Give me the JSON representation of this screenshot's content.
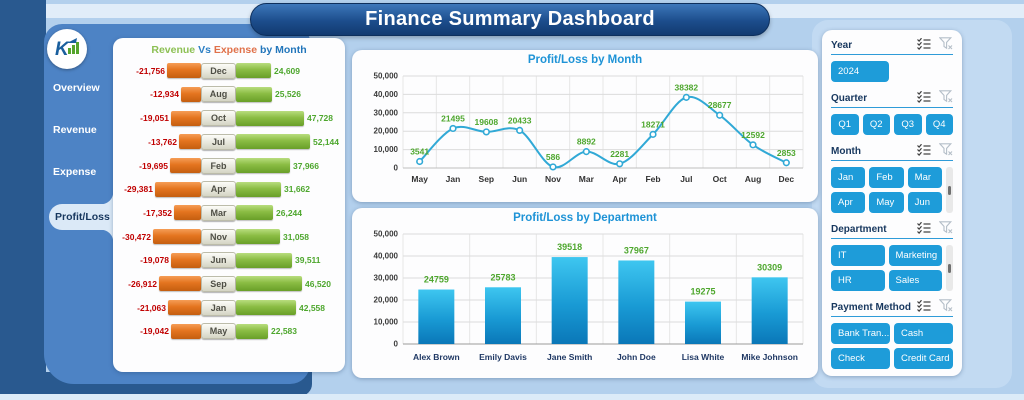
{
  "title": "Finance Summary Dashboard",
  "sidebar": {
    "items": [
      {
        "label": "Overview",
        "active": false
      },
      {
        "label": "Revenue",
        "active": false
      },
      {
        "label": "Expense",
        "active": false
      },
      {
        "label": "Profit/Loss",
        "active": true
      }
    ]
  },
  "colors": {
    "accent_button_blue": "#1e9cd9",
    "chart_title_blue": "#1e93d6",
    "line_cyan": "#31a9d6",
    "data_label_green": "#4ea72e",
    "negative_red": "#c00000",
    "expense_orange": "#e4741f",
    "revenue_green": "#8abc43",
    "navy": "#29598f",
    "sidebar_blue": "#4d83c5"
  },
  "chart_data": [
    {
      "id": "revenue_vs_expense_by_month",
      "type": "bar",
      "orientation": "horizontal-butterfly",
      "title_parts": [
        "Revenue",
        "Vs",
        "Expense",
        "by Month"
      ],
      "categories": [
        "Dec",
        "Aug",
        "Oct",
        "Jul",
        "Feb",
        "Apr",
        "Mar",
        "Nov",
        "Jun",
        "Sep",
        "Jan",
        "May"
      ],
      "series": [
        {
          "name": "Expense",
          "values": [
            -21756,
            -12934,
            -19051,
            -13762,
            -19695,
            -29381,
            -17352,
            -30472,
            -19078,
            -26912,
            -21063,
            -19042
          ]
        },
        {
          "name": "Revenue",
          "values": [
            24609,
            25526,
            47728,
            52144,
            37966,
            31662,
            26244,
            31058,
            39511,
            46520,
            42558,
            22583
          ]
        }
      ]
    },
    {
      "id": "profit_loss_by_month",
      "type": "line",
      "title": "Profit/Loss by Month",
      "categories": [
        "May",
        "Jan",
        "Sep",
        "Jun",
        "Nov",
        "Mar",
        "Apr",
        "Feb",
        "Jul",
        "Oct",
        "Aug",
        "Dec"
      ],
      "values": [
        3541,
        21495,
        19608,
        20433,
        586,
        8892,
        2281,
        18271,
        38382,
        28677,
        12592,
        2853
      ],
      "ylim": [
        0,
        50000
      ],
      "yticks": [
        0,
        10000,
        20000,
        30000,
        40000,
        50000
      ],
      "grid": true,
      "legend": "none"
    },
    {
      "id": "profit_loss_by_department",
      "type": "bar",
      "title": "Profit/Loss by Department",
      "categories": [
        "Alex Brown",
        "Emily Davis",
        "Jane Smith",
        "John Doe",
        "Lisa White",
        "Mike Johnson"
      ],
      "values": [
        24759,
        25783,
        39518,
        37967,
        19275,
        30309
      ],
      "ylim": [
        0,
        50000
      ],
      "yticks": [
        0,
        10000,
        20000,
        30000,
        40000,
        50000
      ],
      "grid": true,
      "legend": "none"
    }
  ],
  "filters": {
    "sections": [
      {
        "label": "Year",
        "layout": "single",
        "scrollbar": false,
        "options": [
          "2024"
        ]
      },
      {
        "label": "Quarter",
        "layout": "row4",
        "scrollbar": false,
        "options": [
          "Q1",
          "Q2",
          "Q3",
          "Q4"
        ]
      },
      {
        "label": "Month",
        "layout": "grid3",
        "scrollbar": true,
        "options": [
          "Jan",
          "Feb",
          "Mar",
          "Apr",
          "May",
          "Jun"
        ]
      },
      {
        "label": "Department",
        "layout": "grid2",
        "scrollbar": true,
        "options": [
          "IT",
          "Marketing",
          "HR",
          "Sales"
        ]
      },
      {
        "label": "Payment Method",
        "layout": "grid2",
        "scrollbar": false,
        "options": [
          "Bank Tran...",
          "Cash",
          "Check",
          "Credit Card"
        ]
      }
    ]
  }
}
